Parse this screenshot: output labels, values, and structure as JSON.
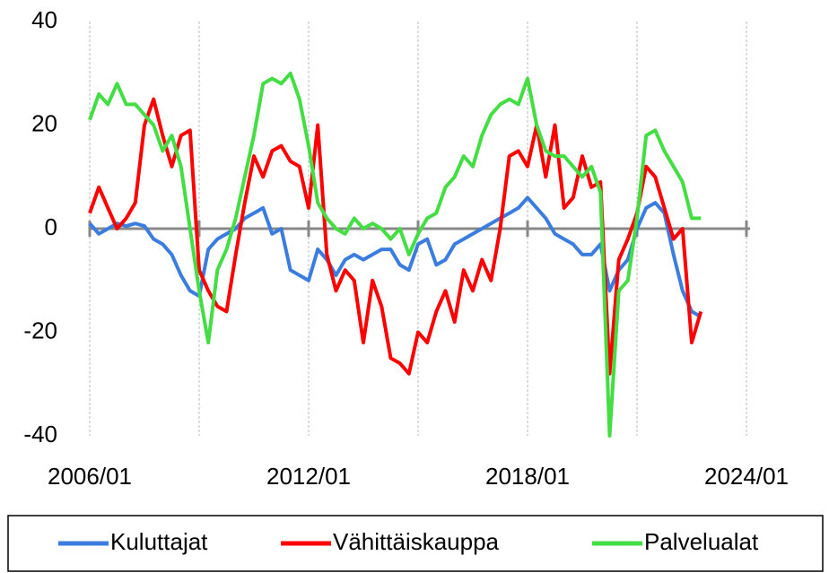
{
  "chart_data": {
    "type": "line",
    "x": [
      "2006/01",
      "2006/04",
      "2006/07",
      "2006/10",
      "2007/01",
      "2007/04",
      "2007/07",
      "2007/10",
      "2008/01",
      "2008/04",
      "2008/07",
      "2008/10",
      "2009/01",
      "2009/04",
      "2009/07",
      "2009/10",
      "2010/01",
      "2010/04",
      "2010/07",
      "2010/10",
      "2011/01",
      "2011/04",
      "2011/07",
      "2011/10",
      "2012/01",
      "2012/04",
      "2012/07",
      "2012/10",
      "2013/01",
      "2013/04",
      "2013/07",
      "2013/10",
      "2014/01",
      "2014/04",
      "2014/07",
      "2014/10",
      "2015/01",
      "2015/04",
      "2015/07",
      "2015/10",
      "2016/01",
      "2016/04",
      "2016/07",
      "2016/10",
      "2017/01",
      "2017/04",
      "2017/07",
      "2017/10",
      "2018/01",
      "2018/04",
      "2018/07",
      "2018/10",
      "2019/01",
      "2019/04",
      "2019/07",
      "2019/10",
      "2020/01",
      "2020/04",
      "2020/07",
      "2020/10",
      "2021/01",
      "2021/04",
      "2021/07",
      "2021/10",
      "2022/01",
      "2022/04",
      "2022/07",
      "2022/10"
    ],
    "series": [
      {
        "name": "Kuluttajat",
        "color": "#3a7ddf",
        "values": [
          1,
          -1,
          0,
          1,
          0.5,
          1,
          0.5,
          -2,
          -3,
          -5,
          -9,
          -12,
          -13,
          -4,
          -2,
          -1,
          0,
          2,
          3,
          4,
          -1,
          0,
          -8,
          -9,
          -10,
          -4,
          -6,
          -9,
          -6,
          -5,
          -6,
          -5,
          -4,
          -4,
          -7,
          -8,
          -3,
          -2,
          -7,
          -6,
          -3,
          -2,
          -1,
          0,
          1,
          2,
          3,
          4,
          6,
          4,
          2,
          -1,
          -2,
          -3,
          -5,
          -5,
          -3,
          -12,
          -8,
          -6,
          0,
          4,
          5,
          3,
          -5,
          -12,
          -16,
          -17
        ]
      },
      {
        "name": "Vähittäiskauppa",
        "color": "#ff0000",
        "values": [
          3,
          8,
          4,
          0,
          2,
          5,
          20,
          25,
          18,
          12,
          18,
          19,
          -8,
          -12,
          -15,
          -16,
          -5,
          5,
          14,
          10,
          15,
          16,
          13,
          12,
          4,
          20,
          -5,
          -12,
          -8,
          -10,
          -22,
          -10,
          -15,
          -25,
          -26,
          -28,
          -20,
          -22,
          -16,
          -12,
          -18,
          -8,
          -12,
          -6,
          -10,
          0,
          14,
          15,
          12,
          20,
          10,
          20,
          4,
          6,
          14,
          8,
          9,
          -28,
          -6,
          -2,
          3,
          12,
          10,
          4,
          -2,
          0,
          -22,
          -16
        ]
      },
      {
        "name": "Palvelualat",
        "color": "#44dd44",
        "values": [
          21,
          26,
          24,
          28,
          24,
          24,
          22,
          20,
          15,
          18,
          12,
          0,
          -12,
          -22,
          -8,
          -4,
          2,
          10,
          18,
          28,
          29,
          28,
          30,
          25,
          16,
          5,
          2,
          0,
          -1,
          2,
          0,
          1,
          0,
          -2,
          0,
          -5,
          -1,
          2,
          3,
          8,
          10,
          14,
          12,
          18,
          22,
          24,
          25,
          24,
          29,
          20,
          15,
          14,
          14,
          12,
          10,
          12,
          7,
          -40,
          -12,
          -10,
          2,
          18,
          19,
          15,
          12,
          9,
          2,
          2
        ]
      }
    ],
    "xlim": [
      "2006/01",
      "2024/01"
    ],
    "xticks": [
      "2006/01",
      {
        "value": "2009/01",
        "label": null
      },
      "2012/01",
      {
        "value": "2015/01",
        "label": null
      },
      "2018/01",
      {
        "value": "2021/01",
        "label": null
      },
      "2024/01"
    ],
    "ylim": [
      -40,
      40
    ],
    "yticks": [
      -40,
      -20,
      0,
      20,
      40
    ],
    "grid": true,
    "legend": "bottom"
  }
}
